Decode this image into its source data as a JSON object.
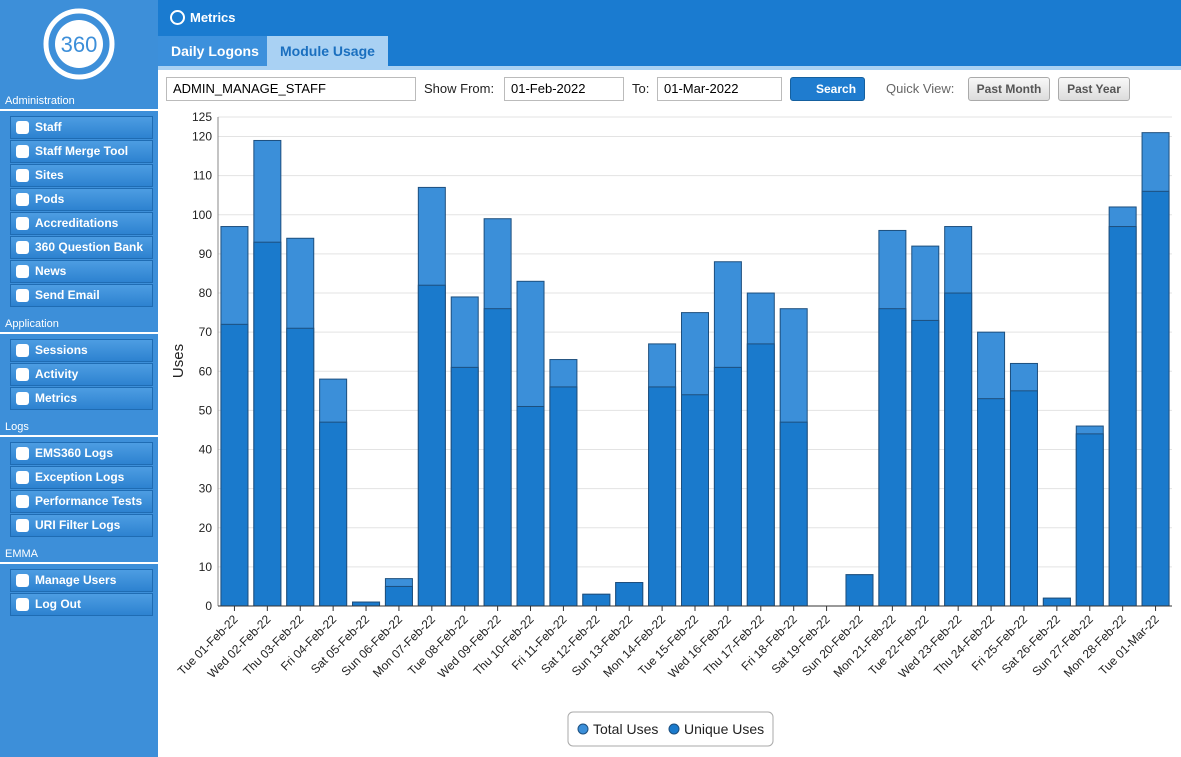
{
  "logo": {
    "text": "360"
  },
  "sidebar": [
    {
      "title": "Administration",
      "items": [
        "Staff",
        "Staff Merge Tool",
        "Sites",
        "Pods",
        "Accreditations",
        "360 Question Bank",
        "News",
        "Send Email"
      ]
    },
    {
      "title": "Application",
      "items": [
        "Sessions",
        "Activity",
        "Metrics"
      ]
    },
    {
      "title": "Logs",
      "items": [
        "EMS360 Logs",
        "Exception Logs",
        "Performance Tests",
        "URI Filter Logs"
      ]
    },
    {
      "title": "EMMA",
      "items": [
        "Manage Users",
        "Log Out"
      ]
    }
  ],
  "header": {
    "title": "Metrics"
  },
  "tabs": [
    "Daily Logons",
    "Module Usage"
  ],
  "toolbar": {
    "module": "ADMIN_MANAGE_STAFF",
    "from_label": "Show From:",
    "from": "01-Feb-2022",
    "to_label": "To:",
    "to": "01-Mar-2022",
    "search": "Search",
    "quick_view": "Quick View:",
    "past_month": "Past Month",
    "past_year": "Past Year"
  },
  "chart_data": {
    "type": "bar",
    "overlay": true,
    "y_label": "Uses",
    "categories": [
      "Tue 01-Feb-22",
      "Wed 02-Feb-22",
      "Thu 03-Feb-22",
      "Fri 04-Feb-22",
      "Sat 05-Feb-22",
      "Sun 06-Feb-22",
      "Mon 07-Feb-22",
      "Tue 08-Feb-22",
      "Wed 09-Feb-22",
      "Thu 10-Feb-22",
      "Fri 11-Feb-22",
      "Sat 12-Feb-22",
      "Sun 13-Feb-22",
      "Mon 14-Feb-22",
      "Tue 15-Feb-22",
      "Wed 16-Feb-22",
      "Thu 17-Feb-22",
      "Fri 18-Feb-22",
      "Sat 19-Feb-22",
      "Sun 20-Feb-22",
      "Mon 21-Feb-22",
      "Tue 22-Feb-22",
      "Wed 23-Feb-22",
      "Thu 24-Feb-22",
      "Fri 25-Feb-22",
      "Sat 26-Feb-22",
      "Sun 27-Feb-22",
      "Mon 28-Feb-22",
      "Tue 01-Mar-22"
    ],
    "series": [
      {
        "name": "Total Uses",
        "color": "#3b8fd9",
        "values": [
          97,
          119,
          94,
          58,
          1,
          7,
          107,
          79,
          99,
          83,
          63,
          3,
          6,
          67,
          75,
          88,
          80,
          76,
          0,
          8,
          96,
          92,
          97,
          70,
          62,
          2,
          46,
          102,
          121
        ]
      },
      {
        "name": "Unique Uses",
        "color": "#1a7acc",
        "values": [
          72,
          93,
          71,
          47,
          1,
          5,
          82,
          61,
          76,
          51,
          56,
          3,
          6,
          56,
          54,
          61,
          67,
          47,
          0,
          8,
          76,
          73,
          80,
          53,
          55,
          2,
          44,
          97,
          106
        ]
      }
    ],
    "ylim": [
      0,
      125
    ],
    "yticks": [
      0,
      10,
      20,
      30,
      40,
      50,
      60,
      70,
      80,
      90,
      100,
      110,
      120,
      125
    ],
    "grid": true,
    "legend": "bottom"
  }
}
